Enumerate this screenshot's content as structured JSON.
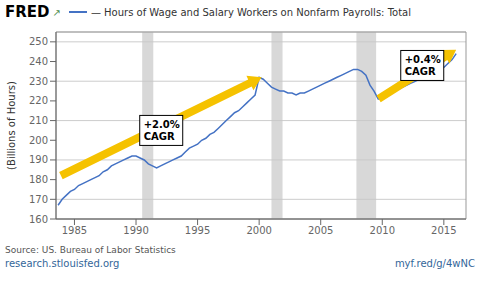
{
  "chart_data": {
    "type": "line",
    "header": "FRED",
    "header_icon": "↗",
    "title": "— Hours of Wage and Salary Workers on Nonfarm Payrolls: Total",
    "ylabel": "(Billions of Hours)",
    "source_line1": "Source: US. Bureau of Labor Statistics",
    "source_line2": "research.stlouisfed.org",
    "source_right": "myf.red/g/4wNC",
    "color": "#4472c4",
    "grid": true,
    "xlim": [
      1983.5,
      2016.8
    ],
    "ylim": [
      160,
      255
    ],
    "xticks": [
      1985,
      1990,
      1995,
      2000,
      2005,
      2010,
      2015
    ],
    "yticks": [
      160,
      170,
      180,
      190,
      200,
      210,
      220,
      230,
      240,
      250
    ],
    "band_color": "#c8c8c8",
    "recession_bands": [
      [
        1990.5,
        1991.4
      ],
      [
        2001.0,
        2001.9
      ],
      [
        2007.9,
        2009.5
      ]
    ],
    "arrow_color": "#f5c200",
    "annotations": [
      {
        "x_start": 1983.9,
        "y_start": 182,
        "x_end": 2000.2,
        "y_end": 232,
        "label": "+2.0%\nCAGR",
        "label_x": 1990.3,
        "label_y": 205
      },
      {
        "x_start": 2009.7,
        "y_start": 221,
        "x_end": 2016.0,
        "y_end": 246,
        "label": "+0.4%\nCAGR",
        "label_x": 2011.5,
        "label_y": 238
      }
    ],
    "x": [
      1983.67,
      1984.0,
      1984.33,
      1984.67,
      1985.0,
      1985.33,
      1985.67,
      1986.0,
      1986.33,
      1986.67,
      1987.0,
      1987.33,
      1987.67,
      1988.0,
      1988.33,
      1988.67,
      1989.0,
      1989.33,
      1989.67,
      1990.0,
      1990.33,
      1990.67,
      1991.0,
      1991.33,
      1991.67,
      1992.0,
      1992.33,
      1992.67,
      1993.0,
      1993.33,
      1993.67,
      1994.0,
      1994.33,
      1994.67,
      1995.0,
      1995.33,
      1995.67,
      1996.0,
      1996.33,
      1996.67,
      1997.0,
      1997.33,
      1997.67,
      1998.0,
      1998.33,
      1998.67,
      1999.0,
      1999.33,
      1999.67,
      2000.0,
      2000.33,
      2000.67,
      2001.0,
      2001.33,
      2001.67,
      2002.0,
      2002.33,
      2002.67,
      2003.0,
      2003.33,
      2003.67,
      2004.0,
      2004.33,
      2004.67,
      2005.0,
      2005.33,
      2005.67,
      2006.0,
      2006.33,
      2006.67,
      2007.0,
      2007.33,
      2007.67,
      2008.0,
      2008.33,
      2008.67,
      2009.0,
      2009.33,
      2009.67,
      2010.0,
      2010.33,
      2010.67,
      2011.0,
      2011.33,
      2011.67,
      2012.0,
      2012.33,
      2012.67,
      2013.0,
      2013.33,
      2013.67,
      2014.0,
      2014.33,
      2014.67,
      2015.0,
      2015.33,
      2015.67,
      2016.0
    ],
    "values": [
      167,
      170,
      172,
      174,
      175,
      177,
      178,
      179,
      180,
      181,
      182,
      184,
      185,
      187,
      188,
      189,
      190,
      191,
      192,
      192,
      191,
      190,
      188,
      187,
      186,
      187,
      188,
      189,
      190,
      191,
      192,
      194,
      196,
      197,
      198,
      200,
      201,
      203,
      204,
      206,
      208,
      210,
      212,
      214,
      215,
      217,
      219,
      221,
      223,
      232,
      231,
      229,
      227,
      226,
      225,
      225,
      224,
      224,
      223,
      224,
      224,
      225,
      226,
      227,
      228,
      229,
      230,
      231,
      232,
      233,
      234,
      235,
      236,
      236,
      235,
      233,
      228,
      225,
      221,
      221,
      222,
      224,
      225,
      226,
      227,
      228,
      229,
      230,
      231,
      232,
      233,
      234,
      235,
      236,
      237,
      239,
      241,
      244
    ]
  }
}
